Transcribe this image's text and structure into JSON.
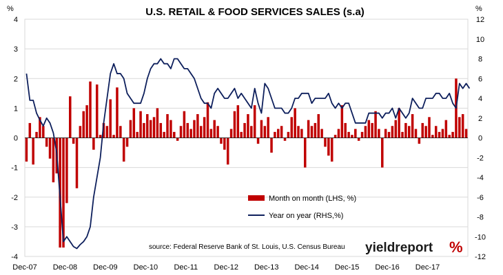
{
  "chart_data": {
    "type": "bar+line",
    "title": "U.S. RETAIL & FOOD SERVICES SALES (s.a)",
    "left_axis": {
      "unit_label": "%",
      "min": -4,
      "max": 4,
      "step": 1
    },
    "right_axis": {
      "unit_label": "%",
      "min": -12,
      "max": 12,
      "step": 2
    },
    "x_tick_labels": [
      "Dec-07",
      "Dec-08",
      "Dec-09",
      "Dec-10",
      "Dec-11",
      "Dec-12",
      "Dec-13",
      "Dec-14",
      "Dec-15",
      "Dec-16",
      "Dec-17"
    ],
    "legend": {
      "placement": "lower-right inside plot"
    },
    "series": [
      {
        "name": "Month on month (LHS, %)",
        "type": "bar",
        "axis": "left",
        "color": "#c00000",
        "values": [
          -0.8,
          0.5,
          -0.9,
          0.2,
          0.7,
          0.4,
          -0.3,
          -0.7,
          -1.5,
          -1.2,
          -3.7,
          -3.7,
          -2.2,
          1.4,
          -0.2,
          -1.7,
          0.4,
          0.9,
          1.1,
          1.9,
          -0.4,
          1.8,
          0.1,
          0.5,
          0.4,
          1.3,
          0.1,
          1.7,
          0.4,
          -0.8,
          -0.3,
          0.6,
          1.0,
          0.2,
          0.9,
          0.5,
          0.8,
          0.6,
          0.7,
          1.0,
          0.5,
          0.2,
          0.8,
          0.6,
          0.2,
          -0.1,
          0.4,
          0.9,
          0.5,
          0.3,
          0.6,
          0.8,
          0.4,
          0.7,
          1.2,
          0.3,
          0.6,
          0.4,
          -0.2,
          -0.4,
          -0.9,
          0.3,
          0.9,
          1.1,
          0.2,
          0.5,
          0.8,
          0.4,
          1.1,
          -0.2,
          0.6,
          0.4,
          0.7,
          -0.5,
          0.2,
          0.3,
          0.4,
          -0.1,
          0.2,
          0.7,
          1.0,
          0.4,
          0.3,
          -1.0,
          0.6,
          0.4,
          0.5,
          0.8,
          0.3,
          -0.3,
          -0.6,
          -0.8,
          0.1,
          0.3,
          1.1,
          0.5,
          0.2,
          0.1,
          0.3,
          -0.1,
          0.2,
          0.4,
          0.6,
          0.5,
          0.9,
          0.3,
          -1.0,
          0.3,
          0.2,
          0.4,
          0.6,
          1.0,
          0.2,
          0.5,
          0.4,
          0.8,
          0.3,
          -0.2,
          0.5,
          0.4,
          0.7,
          0.1,
          0.4,
          0.2,
          0.3,
          0.6,
          0.1,
          0.2,
          2.0,
          0.7,
          0.8,
          0.3
        ]
      },
      {
        "name": "Year on year (RHS,%)",
        "type": "line",
        "axis": "right",
        "color": "#0d1f5c",
        "values": [
          6.5,
          3.8,
          3.8,
          2.5,
          1.8,
          1.2,
          2.0,
          1.5,
          0.5,
          -1.5,
          -6.0,
          -10.5,
          -10.0,
          -10.5,
          -11.0,
          -11.2,
          -10.8,
          -10.5,
          -10.0,
          -9.0,
          -6.0,
          -4.0,
          -2.0,
          1.5,
          4.0,
          6.5,
          7.5,
          6.5,
          6.5,
          6.0,
          4.5,
          4.0,
          3.5,
          3.5,
          3.5,
          4.5,
          6.0,
          7.0,
          7.5,
          7.5,
          8.0,
          7.5,
          7.5,
          7.0,
          8.0,
          8.0,
          7.5,
          7.0,
          7.0,
          6.5,
          6.0,
          5.0,
          4.0,
          3.5,
          3.5,
          3.0,
          4.5,
          5.0,
          4.5,
          4.0,
          4.0,
          4.5,
          5.0,
          4.0,
          4.5,
          4.0,
          3.5,
          3.0,
          5.0,
          3.5,
          2.5,
          5.5,
          5.0,
          4.0,
          3.0,
          3.0,
          3.0,
          2.5,
          2.5,
          3.0,
          4.0,
          4.0,
          4.5,
          4.5,
          4.5,
          3.5,
          4.0,
          4.0,
          4.0,
          4.0,
          4.5,
          3.5,
          3.0,
          3.5,
          3.0,
          3.5,
          3.5,
          2.5,
          1.5,
          1.5,
          1.5,
          1.5,
          2.5,
          2.5,
          2.5,
          2.5,
          2.0,
          2.5,
          2.5,
          3.0,
          2.0,
          3.0,
          2.5,
          2.0,
          2.5,
          4.0,
          3.5,
          3.0,
          3.0,
          4.0,
          4.0,
          4.0,
          4.5,
          4.5,
          4.0,
          4.0,
          4.5,
          3.5,
          3.0,
          5.5,
          5.0,
          5.5,
          5.0
        ]
      }
    ],
    "source_text": "source: Federal Reserve Bank of St. Louis, U.S. Census Bureau",
    "brand": {
      "name": "yieldreport",
      "symbol": "%"
    }
  }
}
